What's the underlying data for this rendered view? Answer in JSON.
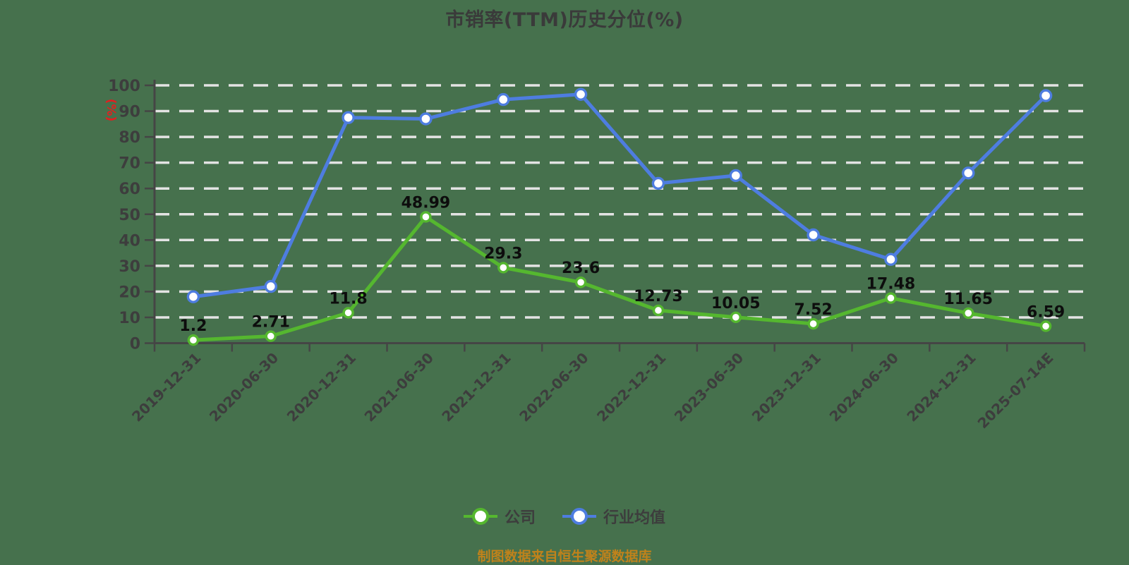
{
  "title": "市销率(TTM)历史分位(%)",
  "y_axis_name": "(%)",
  "footer_note": "制图数据来自恒生聚源数据库",
  "colors": {
    "background": "#46714d",
    "company_line": "#55b72f",
    "industry_line": "#4e7de0",
    "gridline": "#e3e3e3",
    "axis": "#454545",
    "tick_label": "#3d3d3d",
    "title_text": "#3a3a3a",
    "data_label": "#0d0d0d",
    "y_axis_name_text": "#e02020",
    "footer_text": "#c0821b"
  },
  "legend": {
    "items": [
      {
        "label": "公司",
        "color": "#55b72f"
      },
      {
        "label": "行业均值",
        "color": "#4e7de0"
      }
    ]
  },
  "chart_data": {
    "type": "line",
    "title": "市销率(TTM)历史分位(%)",
    "ylabel": "(%)",
    "ylim": [
      0,
      100
    ],
    "y_tick_step": 10,
    "grid": "horizontal-dashed",
    "legend_position": "bottom",
    "categories": [
      "2019-12-31",
      "2020-06-30",
      "2020-12-31",
      "2021-06-30",
      "2021-12-31",
      "2022-06-30",
      "2022-12-31",
      "2023-06-30",
      "2023-12-31",
      "2024-06-30",
      "2024-12-31",
      "2025-07-14E"
    ],
    "series": [
      {
        "name": "公司",
        "color": "#55b72f",
        "values": [
          1.2,
          2.71,
          11.8,
          48.99,
          29.3,
          23.6,
          12.73,
          10.05,
          7.52,
          17.48,
          11.65,
          6.59
        ],
        "data_labels": [
          "1.2",
          "2.71",
          "11.8",
          "48.99",
          "29.3",
          "23.6",
          "12.73",
          "10.05",
          "7.52",
          "17.48",
          "11.65",
          "6.59"
        ],
        "show_labels": true
      },
      {
        "name": "行业均值",
        "color": "#4e7de0",
        "values": [
          18,
          22,
          87.5,
          87,
          94.5,
          96.5,
          62,
          65,
          42,
          32.5,
          66,
          96
        ],
        "data_labels": [],
        "show_labels": false
      }
    ]
  }
}
